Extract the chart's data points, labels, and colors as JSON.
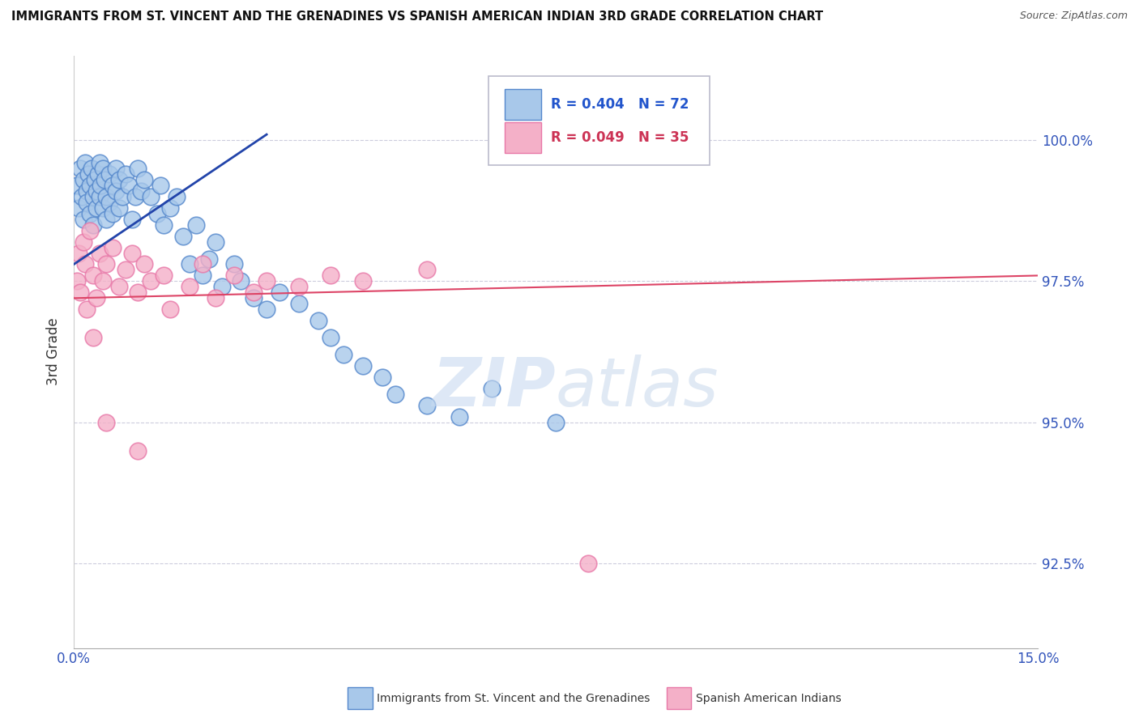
{
  "title": "IMMIGRANTS FROM ST. VINCENT AND THE GRENADINES VS SPANISH AMERICAN INDIAN 3RD GRADE CORRELATION CHART",
  "source": "Source: ZipAtlas.com",
  "ylabel": "3rd Grade",
  "xlim": [
    0.0,
    15.0
  ],
  "ylim": [
    91.0,
    101.5
  ],
  "ytick_vals": [
    92.5,
    95.0,
    97.5,
    100.0
  ],
  "legend1_label": "R = 0.404   N = 72",
  "legend2_label": "R = 0.049   N = 35",
  "blue_color_face": "#a8c8ea",
  "blue_color_edge": "#5588cc",
  "pink_color_face": "#f4b0c8",
  "pink_color_edge": "#e878a8",
  "line1_color": "#2244aa",
  "line2_color": "#dd4466",
  "blue_x": [
    0.05,
    0.08,
    0.1,
    0.12,
    0.15,
    0.15,
    0.18,
    0.2,
    0.2,
    0.22,
    0.25,
    0.25,
    0.28,
    0.3,
    0.3,
    0.32,
    0.35,
    0.35,
    0.38,
    0.4,
    0.4,
    0.42,
    0.45,
    0.45,
    0.48,
    0.5,
    0.5,
    0.55,
    0.55,
    0.6,
    0.6,
    0.65,
    0.65,
    0.7,
    0.7,
    0.75,
    0.8,
    0.85,
    0.9,
    0.95,
    1.0,
    1.05,
    1.1,
    1.2,
    1.3,
    1.35,
    1.4,
    1.5,
    1.6,
    1.7,
    1.8,
    1.9,
    2.0,
    2.1,
    2.2,
    2.3,
    2.5,
    2.6,
    2.8,
    3.0,
    3.2,
    3.5,
    3.8,
    4.0,
    4.2,
    4.5,
    4.8,
    5.0,
    5.5,
    6.0,
    6.5,
    7.5
  ],
  "blue_y": [
    99.2,
    98.8,
    99.5,
    99.0,
    99.3,
    98.6,
    99.6,
    99.1,
    98.9,
    99.4,
    99.2,
    98.7,
    99.5,
    99.0,
    98.5,
    99.3,
    99.1,
    98.8,
    99.4,
    99.6,
    99.0,
    99.2,
    98.8,
    99.5,
    99.3,
    99.0,
    98.6,
    99.4,
    98.9,
    99.2,
    98.7,
    99.5,
    99.1,
    99.3,
    98.8,
    99.0,
    99.4,
    99.2,
    98.6,
    99.0,
    99.5,
    99.1,
    99.3,
    99.0,
    98.7,
    99.2,
    98.5,
    98.8,
    99.0,
    98.3,
    97.8,
    98.5,
    97.6,
    97.9,
    98.2,
    97.4,
    97.8,
    97.5,
    97.2,
    97.0,
    97.3,
    97.1,
    96.8,
    96.5,
    96.2,
    96.0,
    95.8,
    95.5,
    95.3,
    95.1,
    95.6,
    95.0
  ],
  "pink_x": [
    0.05,
    0.08,
    0.1,
    0.15,
    0.18,
    0.2,
    0.25,
    0.3,
    0.35,
    0.4,
    0.45,
    0.5,
    0.6,
    0.7,
    0.8,
    0.9,
    1.0,
    1.1,
    1.2,
    1.4,
    1.5,
    1.8,
    2.0,
    2.2,
    2.5,
    2.8,
    3.0,
    3.5,
    4.0,
    4.5,
    5.5,
    0.3,
    0.5,
    1.0,
    8.0
  ],
  "pink_y": [
    97.5,
    98.0,
    97.3,
    98.2,
    97.8,
    97.0,
    98.4,
    97.6,
    97.2,
    98.0,
    97.5,
    97.8,
    98.1,
    97.4,
    97.7,
    98.0,
    97.3,
    97.8,
    97.5,
    97.6,
    97.0,
    97.4,
    97.8,
    97.2,
    97.6,
    97.3,
    97.5,
    97.4,
    97.6,
    97.5,
    97.7,
    96.5,
    95.0,
    94.5,
    92.5
  ],
  "blue_line_x0": 0.0,
  "blue_line_x1": 3.0,
  "blue_line_y0": 97.8,
  "blue_line_y1": 100.1,
  "pink_line_x0": 0.0,
  "pink_line_x1": 15.0,
  "pink_line_y0": 97.2,
  "pink_line_y1": 97.6,
  "watermark_zip": "ZIP",
  "watermark_atlas": "atlas"
}
